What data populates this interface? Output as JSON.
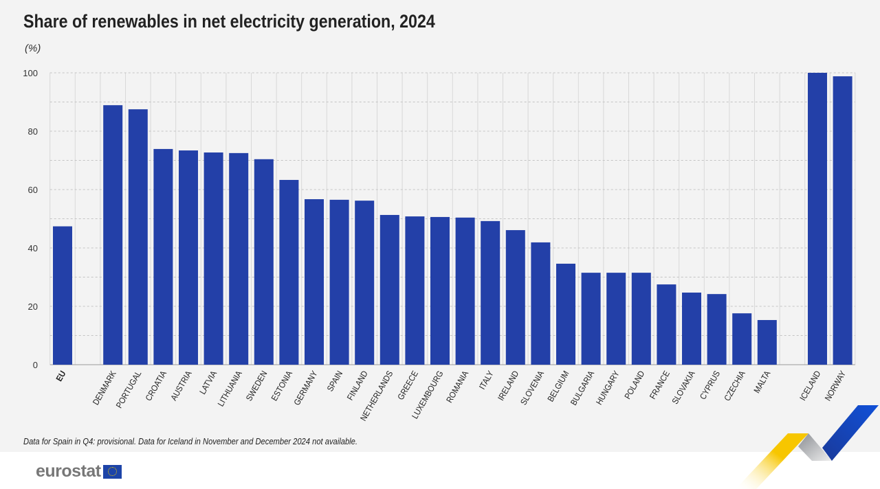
{
  "title": "Share of renewables in net electricity generation, 2024",
  "unit": "(%)",
  "note": "Data for Spain in Q4: provisional. Data for Iceland in November and December 2024 not available.",
  "logo": "eurostat",
  "colors": {
    "bar": "#2340a8",
    "background": "#f3f3f3"
  },
  "chart_data": {
    "type": "bar",
    "categories": [
      "EU",
      "DENMARK",
      "PORTUGAL",
      "CROATIA",
      "AUSTRIA",
      "LATVIA",
      "LITHUANIA",
      "SWEDEN",
      "ESTONIA",
      "GERMANY",
      "SPAIN",
      "FINLAND",
      "NETHERLANDS",
      "GREECE",
      "LUXEMBOURG",
      "ROMANIA",
      "ITALY",
      "IRELAND",
      "SLOVENIA",
      "BELGIUM",
      "BULGARIA",
      "HUNGARY",
      "POLAND",
      "FRANCE",
      "SLOVAKIA",
      "CYPRUS",
      "CZECHIA",
      "MALTA",
      "ICELAND",
      "NORWAY"
    ],
    "values": [
      47.4,
      88.9,
      87.5,
      73.9,
      73.4,
      72.7,
      72.5,
      70.4,
      63.3,
      56.7,
      56.5,
      56.2,
      51.3,
      50.8,
      50.6,
      50.4,
      49.2,
      46.1,
      41.9,
      34.6,
      31.5,
      31.5,
      31.5,
      27.5,
      24.7,
      24.2,
      17.6,
      15.3,
      100.0,
      98.8
    ],
    "ylabel": "(%)",
    "ylim": [
      0,
      100
    ],
    "yticks": [
      0,
      20,
      40,
      60,
      80,
      100
    ],
    "grid": true,
    "legend": "none"
  }
}
